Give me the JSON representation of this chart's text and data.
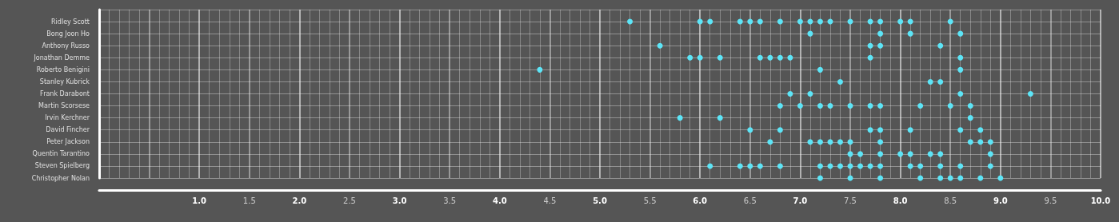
{
  "chart_data": {
    "type": "scatter",
    "orientation": "horizontal",
    "marker": "circle",
    "grid": true,
    "categories": [
      null,
      "Ridley Scott",
      "Bong Joon Ho",
      "Anthony Russo",
      "Jonathan Demme",
      "Roberto Benigini",
      "Stanley Kubrick",
      "Frank Darabont",
      "Martin Scorsese",
      "Irvin Kerchner",
      "David Fincher",
      "Peter Jackson",
      "Quentin Tarantino",
      "Steven Spielberg",
      "Christopher Nolan"
    ],
    "xlim": [
      0,
      10
    ],
    "xticks": [
      {
        "value": 0,
        "label": null
      },
      {
        "value": 0.5,
        "label": null
      },
      {
        "value": 1,
        "label": "1.0"
      },
      {
        "value": 1.5,
        "label": "1.5"
      },
      {
        "value": 2,
        "label": "2.0"
      },
      {
        "value": 2.5,
        "label": "2.5"
      },
      {
        "value": 3,
        "label": "3.0"
      },
      {
        "value": 3.5,
        "label": "3.5"
      },
      {
        "value": 4,
        "label": "4.0"
      },
      {
        "value": 4.5,
        "label": "4.5"
      },
      {
        "value": 5,
        "label": "5.0"
      },
      {
        "value": 5.5,
        "label": "5.5"
      },
      {
        "value": 6,
        "label": "6.0"
      },
      {
        "value": 6.5,
        "label": "6.5"
      },
      {
        "value": 7,
        "label": "7.0"
      },
      {
        "value": 7.5,
        "label": "7.5"
      },
      {
        "value": 8,
        "label": "8.0"
      },
      {
        "value": 8.5,
        "label": "8.5"
      },
      {
        "value": 9,
        "label": "9.0"
      },
      {
        "value": 9.5,
        "label": "9.5"
      },
      {
        "value": 10,
        "label": "10.0"
      }
    ],
    "series": [
      {
        "color": "#5ce5f7",
        "x": [
          "Ridley Scott",
          "Ridley Scott",
          "Ridley Scott",
          "Ridley Scott",
          "Ridley Scott",
          "Ridley Scott",
          "Ridley Scott",
          "Ridley Scott",
          "Ridley Scott",
          "Ridley Scott",
          "Ridley Scott",
          "Ridley Scott",
          "Ridley Scott",
          "Ridley Scott",
          "Ridley Scott",
          "Ridley Scott",
          "Ridley Scott",
          "Bong Joon Ho",
          "Bong Joon Ho",
          "Bong Joon Ho",
          "Bong Joon Ho",
          "Anthony Russo",
          "Anthony Russo",
          "Anthony Russo",
          "Anthony Russo",
          "Jonathan Demme",
          "Jonathan Demme",
          "Jonathan Demme",
          "Jonathan Demme",
          "Jonathan Demme",
          "Jonathan Demme",
          "Jonathan Demme",
          "Jonathan Demme",
          "Jonathan Demme",
          "Roberto Benigini",
          "Roberto Benigini",
          "Roberto Benigini",
          "Stanley Kubrick",
          "Stanley Kubrick",
          "Stanley Kubrick",
          "Frank Darabont",
          "Frank Darabont",
          "Frank Darabont",
          "Frank Darabont",
          "Martin Scorsese",
          "Martin Scorsese",
          "Martin Scorsese",
          "Martin Scorsese",
          "Martin Scorsese",
          "Martin Scorsese",
          "Martin Scorsese",
          "Martin Scorsese",
          "Martin Scorsese",
          "Martin Scorsese",
          "Irvin Kerchner",
          "Irvin Kerchner",
          "Irvin Kerchner",
          "David Fincher",
          "David Fincher",
          "David Fincher",
          "David Fincher",
          "David Fincher",
          "David Fincher",
          "David Fincher",
          "Peter Jackson",
          "Peter Jackson",
          "Peter Jackson",
          "Peter Jackson",
          "Peter Jackson",
          "Peter Jackson",
          "Peter Jackson",
          "Peter Jackson",
          "Peter Jackson",
          "Peter Jackson",
          "Quentin Tarantino",
          "Quentin Tarantino",
          "Quentin Tarantino",
          "Quentin Tarantino",
          "Quentin Tarantino",
          "Quentin Tarantino",
          "Quentin Tarantino",
          "Quentin Tarantino",
          "Steven Spielberg",
          "Steven Spielberg",
          "Steven Spielberg",
          "Steven Spielberg",
          "Steven Spielberg",
          "Steven Spielberg",
          "Steven Spielberg",
          "Steven Spielberg",
          "Steven Spielberg",
          "Steven Spielberg",
          "Steven Spielberg",
          "Steven Spielberg",
          "Steven Spielberg",
          "Steven Spielberg",
          "Steven Spielberg",
          "Steven Spielberg",
          "Steven Spielberg",
          "Christopher Nolan",
          "Christopher Nolan",
          "Christopher Nolan",
          "Christopher Nolan",
          "Christopher Nolan",
          "Christopher Nolan",
          "Christopher Nolan",
          "Christopher Nolan",
          "Christopher Nolan"
        ],
        "values": [
          5.3,
          6.0,
          6.1,
          6.4,
          6.5,
          6.6,
          6.8,
          7.0,
          7.1,
          7.2,
          7.3,
          7.5,
          7.7,
          7.8,
          8.0,
          8.1,
          8.5,
          7.1,
          7.8,
          8.1,
          8.6,
          5.6,
          7.7,
          7.8,
          8.4,
          5.9,
          6.0,
          6.2,
          6.6,
          6.7,
          6.8,
          6.9,
          7.7,
          8.6,
          4.4,
          7.2,
          8.6,
          7.4,
          8.3,
          8.4,
          6.9,
          7.1,
          8.6,
          9.3,
          6.8,
          7.0,
          7.2,
          7.3,
          7.5,
          7.7,
          7.8,
          8.2,
          8.5,
          8.7,
          5.8,
          6.2,
          8.7,
          6.5,
          6.8,
          7.7,
          7.8,
          8.1,
          8.6,
          8.8,
          6.7,
          7.1,
          7.2,
          7.3,
          7.4,
          7.5,
          7.8,
          8.7,
          8.8,
          8.9,
          7.5,
          7.6,
          7.8,
          8.0,
          8.1,
          8.3,
          8.4,
          8.9,
          6.1,
          6.4,
          6.5,
          6.6,
          6.8,
          7.2,
          7.3,
          7.4,
          7.5,
          7.6,
          7.7,
          7.8,
          8.1,
          8.2,
          8.4,
          8.6,
          8.9,
          7.2,
          7.5,
          7.8,
          8.2,
          8.4,
          8.5,
          8.6,
          8.8,
          9.0
        ]
      }
    ]
  }
}
